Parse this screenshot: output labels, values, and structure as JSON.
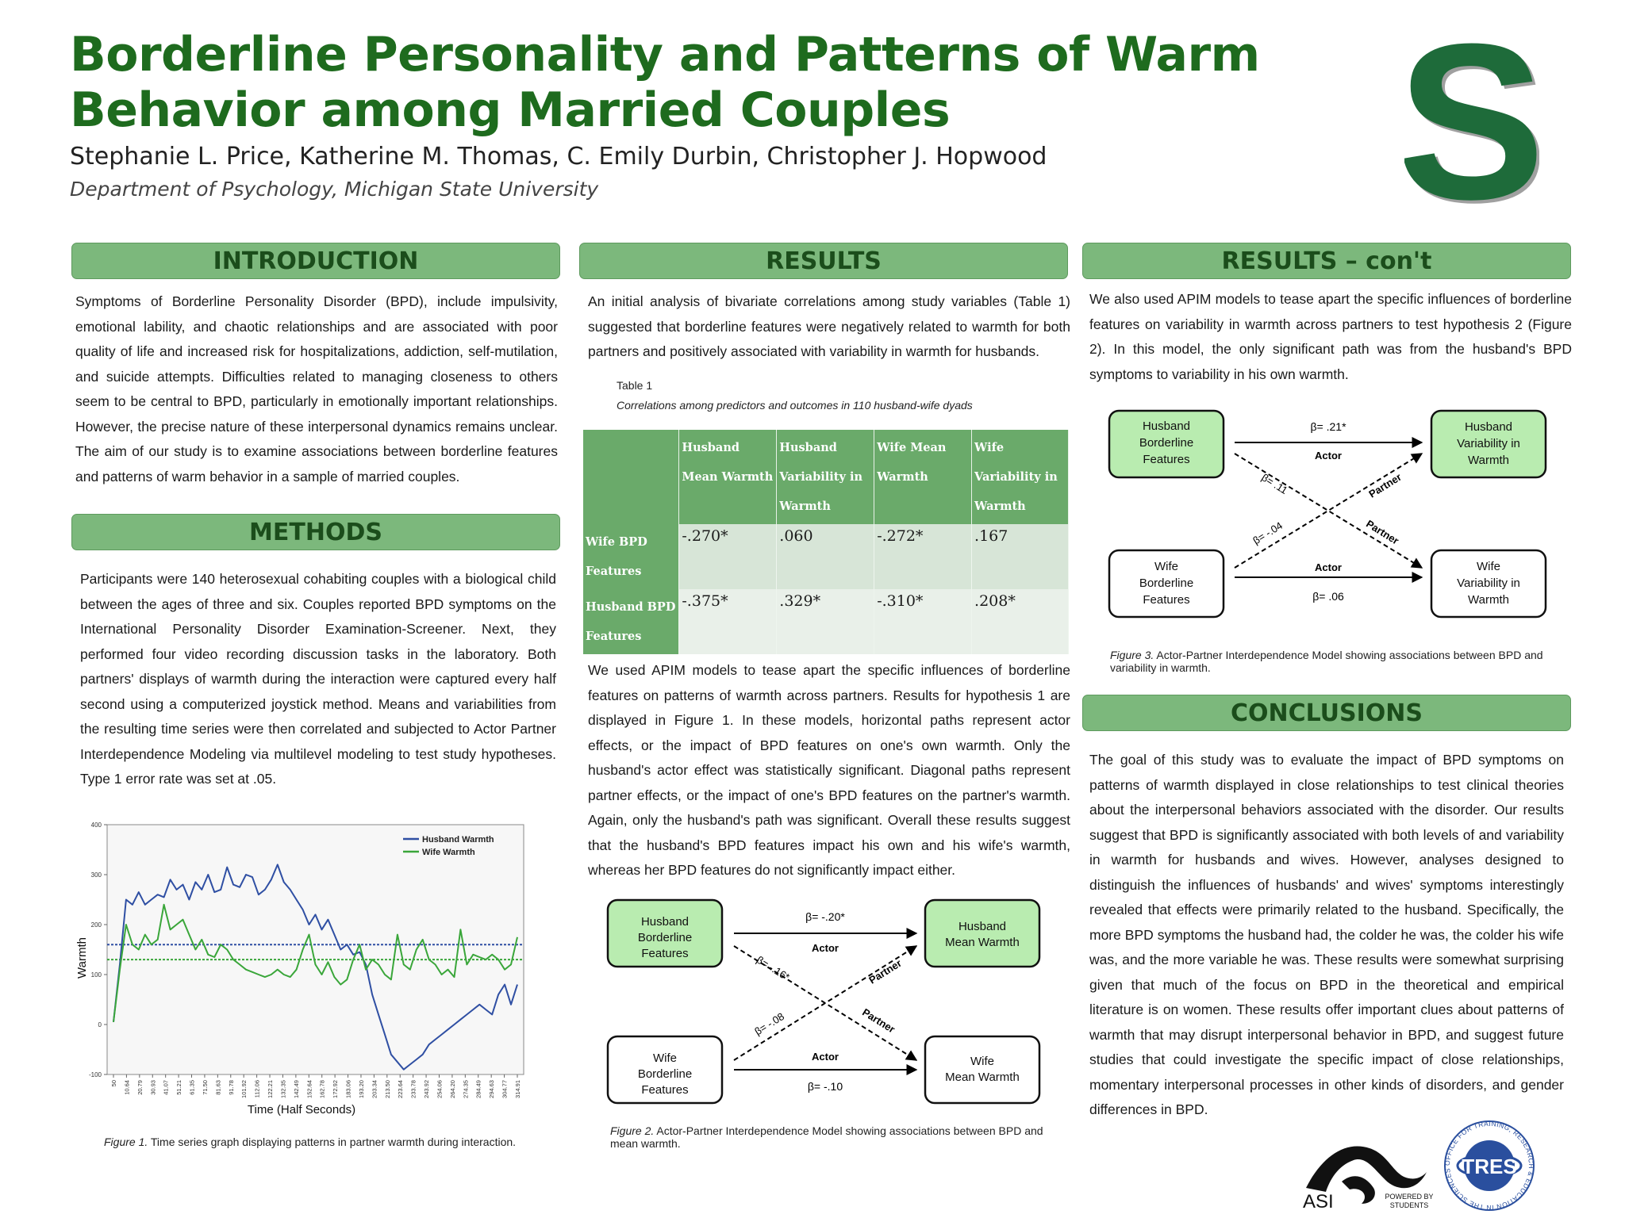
{
  "header": {
    "title": "Borderline Personality and Patterns of Warm Behavior among Married Couples",
    "authors": "Stephanie L. Price, Katherine M. Thomas, C. Emily Durbin, Christopher J. Hopwood",
    "department": "Department of Psychology, Michigan State University",
    "logo_letter": "S"
  },
  "intro": {
    "heading": "INTRODUCTION",
    "text": "Symptoms of Borderline Personality Disorder (BPD), include impulsivity, emotional lability, and chaotic relationships and are associated with poor quality of life and increased risk for hospitalizations, addiction, self-mutilation, and suicide attempts. Difficulties related to managing closeness to others seem to be central to BPD, particularly in emotionally important relationships. However, the precise nature of these interpersonal dynamics remains unclear. The aim of our study is to examine associations between borderline features and patterns of warm behavior in a sample of married couples."
  },
  "methods": {
    "heading": "METHODS",
    "text": "Participants were 140 heterosexual cohabiting couples with a biological child between the ages of three and six. Couples reported BPD symptoms on the International Personality Disorder Examination-Screener. Next, they performed four video recording discussion tasks in the laboratory. Both partners' displays of warmth during the interaction were captured every half second using a computerized joystick method. Means and variabilities from the resulting time series were then correlated and subjected to Actor Partner Interdependence Modeling via multilevel modeling to test study hypotheses. Type 1 error rate was set at .05."
  },
  "figure1": {
    "caption_label": "Figure 1.",
    "caption_text": "Time series graph displaying patterns in partner warmth during interaction."
  },
  "chart_data": {
    "type": "line",
    "title": "",
    "xlabel": "Time (Half Seconds)",
    "ylabel": "Warmth",
    "ylim": [
      -100,
      400
    ],
    "yticks": [
      -100,
      0,
      100,
      200,
      300,
      400
    ],
    "xticks": [
      "50",
      "10.64",
      "20.79",
      "30.93",
      "41.07",
      "51.21",
      "61.35",
      "71.50",
      "81.63",
      "91.78",
      "101.92",
      "112.06",
      "122.21",
      "132.35",
      "142.49",
      "152.64",
      "162.78",
      "172.92",
      "183.06",
      "193.20",
      "203.34",
      "213.50",
      "223.64",
      "233.78",
      "243.92",
      "254.06",
      "264.20",
      "274.35",
      "284.49",
      "294.63",
      "304.77",
      "314.91"
    ],
    "legend_position": "top-right",
    "series": [
      {
        "name": "Husband Warmth",
        "color": "#2f4fa3",
        "mean": 160,
        "values": [
          5,
          120,
          250,
          240,
          265,
          240,
          250,
          260,
          255,
          290,
          270,
          280,
          250,
          285,
          270,
          300,
          265,
          270,
          315,
          280,
          275,
          300,
          295,
          260,
          270,
          290,
          320,
          285,
          270,
          250,
          230,
          200,
          220,
          190,
          210,
          180,
          150,
          160,
          140,
          145,
          120,
          60,
          20,
          -20,
          -60,
          -75,
          -90,
          -80,
          -70,
          -60,
          -40,
          -30,
          -20,
          -10,
          0,
          10,
          20,
          30,
          40,
          30,
          20,
          60,
          80,
          40,
          80
        ]
      },
      {
        "name": "Wife Warmth",
        "color": "#3aa63a",
        "mean": 130,
        "values": [
          5,
          110,
          200,
          160,
          150,
          180,
          160,
          170,
          240,
          190,
          200,
          210,
          180,
          150,
          170,
          140,
          135,
          160,
          150,
          130,
          120,
          110,
          105,
          100,
          95,
          100,
          110,
          100,
          95,
          110,
          150,
          180,
          120,
          100,
          125,
          95,
          80,
          90,
          130,
          160,
          110,
          130,
          120,
          100,
          90,
          180,
          120,
          110,
          150,
          170,
          130,
          120,
          100,
          110,
          95,
          190,
          120,
          140,
          135,
          130,
          140,
          130,
          110,
          120,
          175
        ]
      }
    ]
  },
  "results": {
    "heading": "RESULTS",
    "text1": "An initial analysis of bivariate correlations among study variables (Table 1) suggested that borderline features were negatively related to warmth for both partners and positively associated with variability in warmth for husbands.",
    "table_label": "Table 1",
    "table_title": "Correlations among predictors and outcomes in 110 husband-wife dyads",
    "table": {
      "columns": [
        "Husband Mean Warmth",
        "Husband Variability in Warmth",
        "Wife Mean Warmth",
        "Wife Variability in Warmth"
      ],
      "rows": [
        {
          "label": "Wife BPD Features",
          "values": [
            "-.270*",
            ".060",
            "-.272*",
            ".167"
          ]
        },
        {
          "label": "Husband BPD Features",
          "values": [
            "-.375*",
            ".329*",
            "-.310*",
            ".208*"
          ]
        }
      ]
    },
    "text2": "We used APIM models to tease apart the specific influences of borderline features on patterns of warmth across partners. Results for hypothesis 1 are displayed in Figure 1. In these models, horizontal paths represent actor effects, or the impact of BPD features on one's own warmth. Only the husband's actor effect was statistically significant. Diagonal paths represent partner effects, or the impact of one's BPD features on the partner's warmth. Again, only the husband's path was significant. Overall these results suggest that the husband's BPD features impact his own and his wife's warmth, whereas her BPD features do not significantly impact either."
  },
  "figure2": {
    "husband_bpd": [
      "Husband",
      "Borderline",
      "Features"
    ],
    "wife_bpd": [
      "Wife",
      "Borderline",
      "Features"
    ],
    "husband_out": [
      "Husband",
      "Mean Warmth"
    ],
    "wife_out": [
      "Wife",
      "Mean Warmth"
    ],
    "beta_top": "β= -.20*",
    "beta_bottom": "β= -.10",
    "beta_diag1": "β= -.16*",
    "beta_diag2": "β= -.08",
    "actor": "Actor",
    "partner": "Partner",
    "caption_label": "Figure 2.",
    "caption_text": "Actor-Partner Interdependence Model showing associations between BPD and mean warmth."
  },
  "results_cont": {
    "heading": "RESULTS – con't",
    "text": "We also used APIM models to tease apart the specific influences of borderline features on variability in warmth across partners to test hypothesis 2 (Figure 2). In this model, the only significant path was from the husband's BPD symptoms to variability in his own warmth."
  },
  "figure3": {
    "husband_bpd": [
      "Husband",
      "Borderline",
      "Features"
    ],
    "wife_bpd": [
      "Wife",
      "Borderline",
      "Features"
    ],
    "husband_out": [
      "Husband",
      "Variability in",
      "Warmth"
    ],
    "wife_out": [
      "Wife",
      "Variability in",
      "Warmth"
    ],
    "beta_top": "β= .21*",
    "beta_bottom": "β= .06",
    "beta_diag1": "β= .11",
    "beta_diag2": "β= -.04",
    "actor": "Actor",
    "partner": "Partner",
    "caption_label": "Figure 3.",
    "caption_text": "Actor-Partner Interdependence Model showing associations between BPD and variability in warmth."
  },
  "conclusions": {
    "heading": "CONCLUSIONS",
    "text": "The goal of this study was to evaluate the impact of BPD symptoms on patterns of warmth displayed in close relationships to test clinical theories about the interpersonal behaviors associated with the disorder. Our results suggest that BPD is significantly associated with both levels of and variability in warmth for husbands and wives. However, analyses designed to distinguish the influences of husbands' and wives' symptoms interestingly revealed that effects were primarily related to the husband. Specifically, the more BPD symptoms the husband had, the colder he was, the colder his wife was, and the more variable he was. These results were somewhat surprising given that much of the focus on BPD in the theoretical and empirical literature is on women. These results offer important clues about patterns of warmth that may disrupt interpersonal behavior in BPD, and suggest future studies that could investigate the specific impact of close relationships, momentary interpersonal processes in other kinds of disorders, and gender differences in BPD."
  },
  "logos": {
    "asi": "ASI",
    "asi_tag": [
      "POWERED BY",
      "STUDENTS"
    ],
    "tres": "TRES",
    "tres_ring": "OFFICE FOR TRAINING, RESEARCH & EDUCATION IN THE SCIENCES"
  },
  "colors": {
    "accent_green": "#1e6b1e",
    "banner_green": "#7cb87c",
    "box_green": "#b9ecb0"
  }
}
